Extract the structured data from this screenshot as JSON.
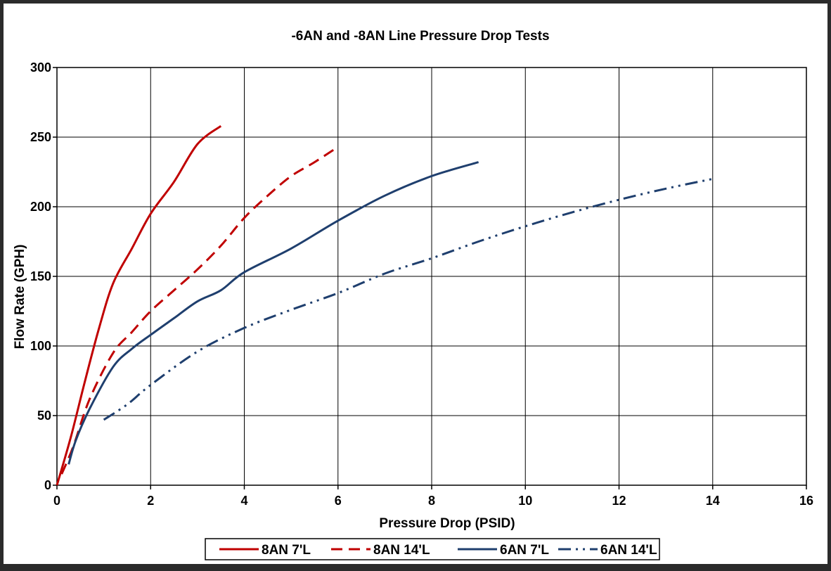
{
  "chart_data": {
    "type": "line",
    "title": "-6AN and -8AN Line Pressure Drop Tests",
    "xlabel": "Pressure Drop (PSID)",
    "ylabel": "Flow Rate (GPH)",
    "xlim": [
      0,
      16
    ],
    "ylim": [
      0,
      300
    ],
    "xticks": [
      "0",
      "2",
      "4",
      "6",
      "8",
      "10",
      "12",
      "14",
      "16"
    ],
    "yticks": [
      "0",
      "50",
      "100",
      "150",
      "200",
      "250",
      "300"
    ],
    "grid": true,
    "legend_position": "bottom",
    "series": [
      {
        "name": "8AN 7'L",
        "color": "#c00000",
        "dash": "solid",
        "points": [
          [
            0,
            0
          ],
          [
            0.3,
            35
          ],
          [
            0.6,
            75
          ],
          [
            0.9,
            113
          ],
          [
            1.2,
            145
          ],
          [
            1.6,
            170
          ],
          [
            2.0,
            195
          ],
          [
            2.5,
            218
          ],
          [
            3.0,
            245
          ],
          [
            3.5,
            258
          ]
        ]
      },
      {
        "name": "8AN 14'L",
        "color": "#c00000",
        "dash": "dash",
        "points": [
          [
            0.1,
            8
          ],
          [
            0.35,
            28
          ],
          [
            0.7,
            62
          ],
          [
            1.2,
            95
          ],
          [
            1.6,
            110
          ],
          [
            2.0,
            125
          ],
          [
            2.5,
            140
          ],
          [
            3.0,
            155
          ],
          [
            3.5,
            172
          ],
          [
            4.0,
            192
          ],
          [
            4.5,
            208
          ],
          [
            5.0,
            222
          ],
          [
            5.5,
            232
          ],
          [
            6.0,
            243
          ]
        ]
      },
      {
        "name": "6AN 7'L",
        "color": "#1f3f6e",
        "dash": "solid",
        "points": [
          [
            0.25,
            15
          ],
          [
            0.4,
            32
          ],
          [
            0.7,
            55
          ],
          [
            1.2,
            85
          ],
          [
            1.6,
            98
          ],
          [
            2.0,
            108
          ],
          [
            2.5,
            120
          ],
          [
            3.0,
            132
          ],
          [
            3.5,
            140
          ],
          [
            4.0,
            153
          ],
          [
            5.0,
            170
          ],
          [
            6.0,
            190
          ],
          [
            7.0,
            208
          ],
          [
            8.0,
            222
          ],
          [
            9.0,
            232
          ]
        ]
      },
      {
        "name": "6AN 14'L",
        "color": "#1f3f6e",
        "dash": "dashdotdot",
        "points": [
          [
            1.0,
            47
          ],
          [
            1.5,
            58
          ],
          [
            2.0,
            72
          ],
          [
            3.0,
            96
          ],
          [
            4.0,
            113
          ],
          [
            5.0,
            126
          ],
          [
            6.0,
            138
          ],
          [
            7.0,
            152
          ],
          [
            8.0,
            163
          ],
          [
            9.0,
            175
          ],
          [
            10.0,
            186
          ],
          [
            11.0,
            196
          ],
          [
            12.0,
            205
          ],
          [
            13.0,
            213
          ],
          [
            14.0,
            220
          ]
        ]
      }
    ]
  }
}
